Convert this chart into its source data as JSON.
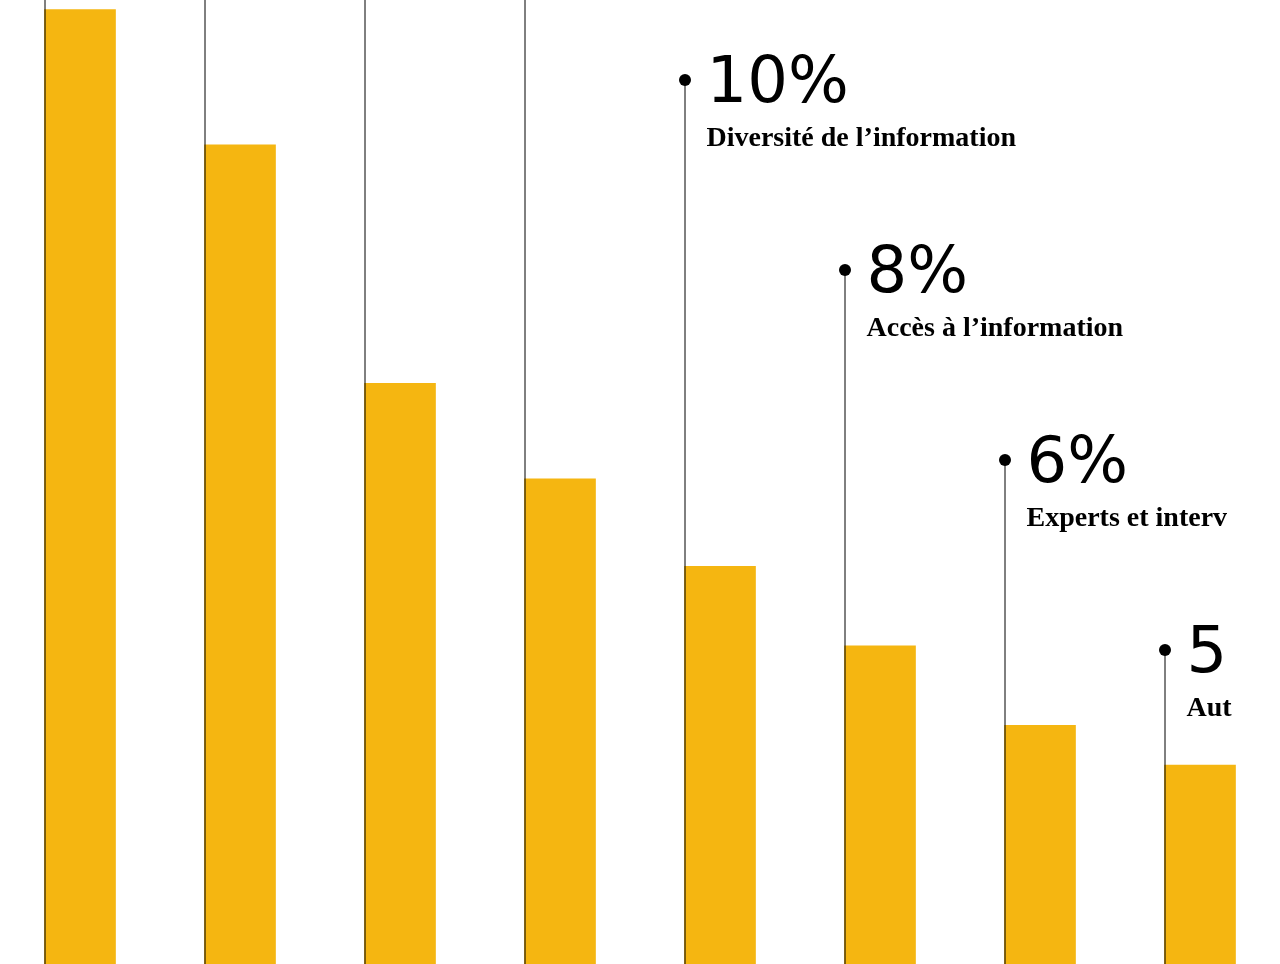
{
  "chart_data": {
    "type": "bar",
    "categories": [
      null,
      null,
      null,
      null,
      null,
      null,
      null,
      null
    ],
    "values": [
      24,
      20.6,
      14.6,
      12.2,
      10,
      8,
      6,
      5
    ],
    "color": "#f5b611",
    "value_labels": [
      null,
      null,
      null,
      null,
      "10%",
      "8%",
      "6%",
      "5"
    ],
    "annotations": [
      "Diversité de l’information",
      "Accès à l’information",
      "Experts et interv",
      "Aut"
    ]
  }
}
